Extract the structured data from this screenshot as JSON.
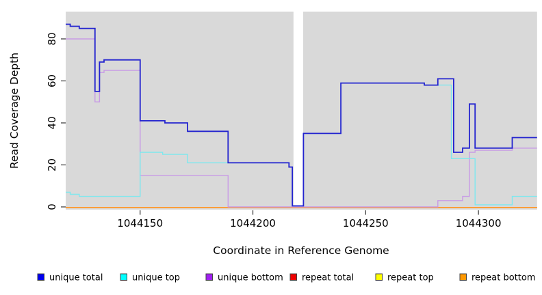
{
  "chart_data": {
    "type": "line",
    "subtype": "step-after-coverage-plot",
    "title": "",
    "xlabel": "Coordinate in Reference Genome",
    "ylabel": "Read Coverage Depth",
    "panel_bg": "#d9d9d9",
    "xlim": [
      1044117,
      1044326
    ],
    "ylim": [
      0,
      93
    ],
    "x_ticks": [
      1044150,
      1044200,
      1044250,
      1044300
    ],
    "y_ticks": [
      0,
      20,
      40,
      60,
      80
    ],
    "gap_region": {
      "from": 1044218,
      "to": 1044222.3
    },
    "legend_position": "bottom",
    "series": [
      {
        "name": "repeat top",
        "legend_color": "#ffff00",
        "line_color": "#f0ee60",
        "points": [
          [
            1044117,
            0
          ]
        ]
      },
      {
        "name": "repeat total",
        "legend_color": "#ee0000",
        "line_color": "#d06a7e",
        "points": [
          [
            1044117,
            0
          ]
        ]
      },
      {
        "name": "repeat bottom",
        "legend_color": "#ff9800",
        "line_color": "#ff9d2e",
        "points": [
          [
            1044117,
            0
          ]
        ]
      },
      {
        "name": "unique bottom",
        "legend_color": "#a020f0",
        "line_color": "#c89ae6",
        "points": [
          [
            1044117,
            80
          ],
          [
            1044130,
            50
          ],
          [
            1044132,
            64
          ],
          [
            1044134,
            65
          ],
          [
            1044150,
            15
          ],
          [
            1044189,
            0
          ],
          [
            1044282,
            3
          ],
          [
            1044293,
            5
          ],
          [
            1044296,
            26
          ],
          [
            1044298.5,
            27
          ],
          [
            1044315,
            28
          ]
        ]
      },
      {
        "name": "unique top",
        "legend_color": "#00ffff",
        "line_color": "#7de8ee",
        "points": [
          [
            1044117,
            7
          ],
          [
            1044119,
            6
          ],
          [
            1044123,
            5
          ],
          [
            1044150,
            26
          ],
          [
            1044160,
            25
          ],
          [
            1044171,
            21
          ],
          [
            1044216,
            19
          ],
          [
            1044217.5,
            0.5
          ],
          [
            1044222.4,
            35
          ],
          [
            1044239,
            59
          ],
          [
            1044276,
            58
          ],
          [
            1044288,
            23
          ],
          [
            1044298.5,
            1
          ],
          [
            1044315,
            5
          ]
        ]
      },
      {
        "name": "unique total",
        "legend_color": "#0000ee",
        "line_color": "#2323cf",
        "points": [
          [
            1044117,
            87
          ],
          [
            1044119,
            86
          ],
          [
            1044123,
            85
          ],
          [
            1044130,
            55
          ],
          [
            1044132,
            69
          ],
          [
            1044134,
            70
          ],
          [
            1044150,
            41
          ],
          [
            1044161,
            40
          ],
          [
            1044171,
            36
          ],
          [
            1044189,
            21
          ],
          [
            1044216,
            19
          ],
          [
            1044217.5,
            0.5
          ],
          [
            1044222.4,
            35
          ],
          [
            1044239,
            59
          ],
          [
            1044276,
            58
          ],
          [
            1044282,
            61
          ],
          [
            1044289,
            26
          ],
          [
            1044293,
            28
          ],
          [
            1044296,
            49
          ],
          [
            1044298.5,
            28
          ],
          [
            1044315,
            33
          ]
        ]
      }
    ],
    "legend": [
      {
        "label": "unique total"
      },
      {
        "label": "unique top"
      },
      {
        "label": "unique bottom"
      },
      {
        "label": "repeat total"
      },
      {
        "label": "repeat top"
      },
      {
        "label": "repeat bottom"
      }
    ]
  }
}
